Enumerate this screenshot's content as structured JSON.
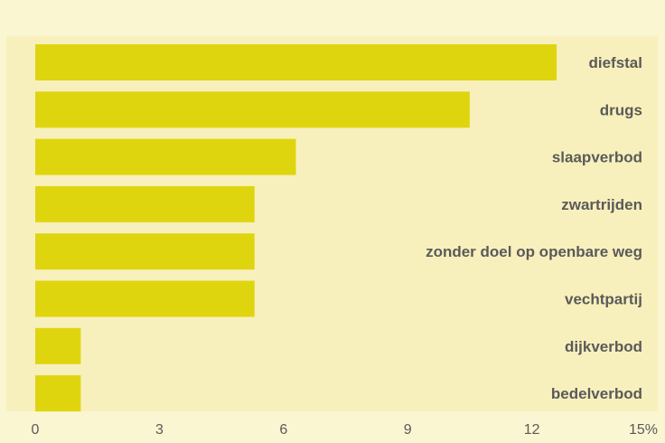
{
  "chart_data": {
    "type": "bar",
    "orientation": "horizontal",
    "categories": [
      "diefstal",
      "drugs",
      "slaapverbod",
      "zwartrijden",
      "zonder doel op openbare weg",
      "vechtpartij",
      "dijkverbod",
      "bedelverbod"
    ],
    "values": [
      12.6,
      10.5,
      6.3,
      5.3,
      5.3,
      5.3,
      1.1,
      1.1
    ],
    "xlim": [
      0,
      15
    ],
    "xticks": [
      "0",
      "3",
      "6",
      "9",
      "12",
      "15%"
    ],
    "tick_values": [
      0,
      3,
      6,
      9,
      12,
      15
    ],
    "grid": false,
    "legend": "none",
    "bar_color": "#dfd50f",
    "background_color": "#faf6d2",
    "panel_color": "#f8f0bc",
    "text_color": "#5a5a5a"
  }
}
